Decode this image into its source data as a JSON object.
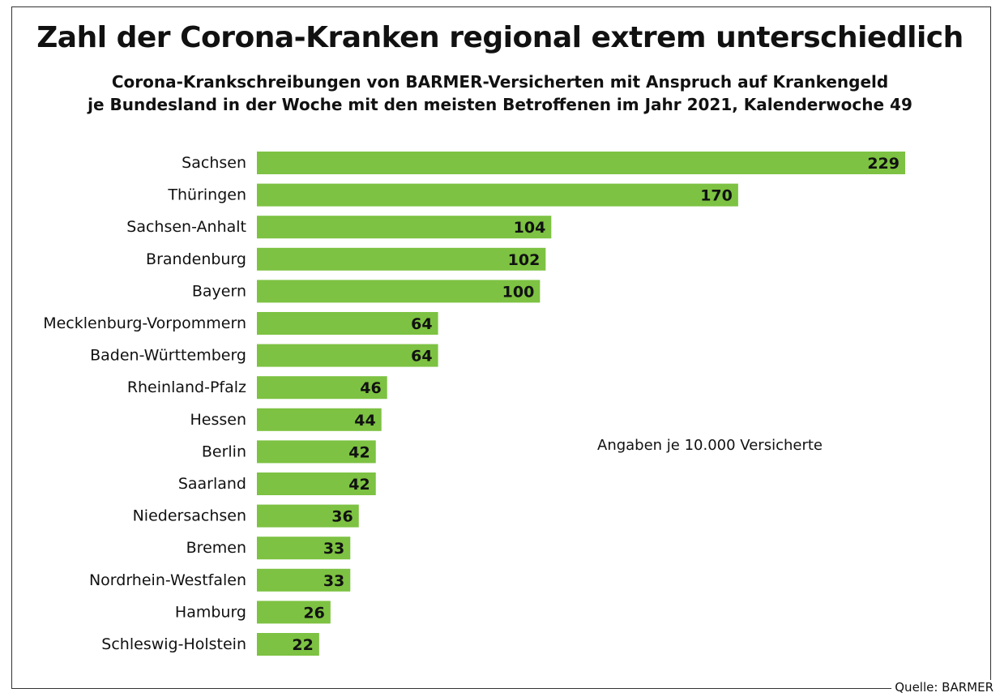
{
  "chart_data": {
    "type": "bar",
    "orientation": "horizontal",
    "title": "Zahl der Corona-Kranken regional extrem unterschiedlich",
    "subtitle_line1": "Corona-Krankschreibungen von BARMER-Versicherten mit Anspruch auf Krankengeld",
    "subtitle_line2": "je Bundesland in der Woche mit den meisten Betroffenen im Jahr 2021, Kalenderwoche 49",
    "categories": [
      "Sachsen",
      "Thüringen",
      "Sachsen-Anhalt",
      "Brandenburg",
      "Bayern",
      "Mecklenburg-Vorpommern",
      "Baden-Württemberg",
      "Rheinland-Pfalz",
      "Hessen",
      "Berlin",
      "Saarland",
      "Niedersachsen",
      "Bremen",
      "Nordrhein-Westfalen",
      "Hamburg",
      "Schleswig-Holstein"
    ],
    "values": [
      229,
      170,
      104,
      102,
      100,
      64,
      64,
      46,
      44,
      42,
      42,
      36,
      33,
      33,
      26,
      22
    ],
    "annotation": "Angaben je 10.000 Versicherte",
    "source": "Quelle: BARMER",
    "bar_color": "#7dc242",
    "xlim": [
      0,
      229
    ]
  }
}
